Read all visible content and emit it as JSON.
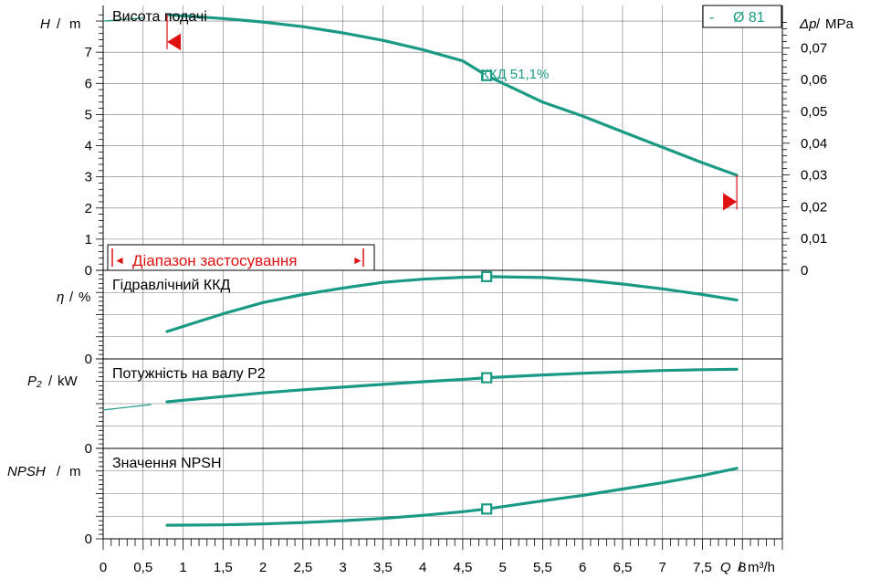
{
  "chart_data": {
    "type": "line",
    "colors": {
      "curve": "#1a9a84",
      "range": "#e01010",
      "grid": "#000000",
      "minor_grid": "#777777"
    },
    "x_axis": {
      "label": "Q",
      "unit": "m³/h",
      "range": [
        0,
        8.5
      ],
      "ticks": [
        "0",
        "0,5",
        "1",
        "1,5",
        "2",
        "2,5",
        "3",
        "3,5",
        "4",
        "4,5",
        "5",
        "5,5",
        "6",
        "6,5",
        "7",
        "7,5",
        "8"
      ]
    },
    "operating_point": {
      "q": 4.8
    },
    "panels": [
      {
        "id": "head",
        "title": "Висота подачі",
        "ylabel": "H",
        "yunit": "m",
        "ylim": [
          0,
          8.5
        ],
        "yticks": [
          "0",
          "1",
          "2",
          "3",
          "4",
          "5",
          "6",
          "7",
          "m"
        ],
        "y2label": "Δp",
        "y2unit": "MPa",
        "y2ticks": [
          "0",
          "0,01",
          "0,02",
          "0,03",
          "0,04",
          "0,05",
          "0,06",
          "0,07",
          "/ MPa"
        ],
        "series": {
          "name": "Ø 81",
          "values": [
            [
              0.8,
              8.2
            ],
            [
              1.5,
              8.08
            ],
            [
              2,
              7.97
            ],
            [
              2.5,
              7.82
            ],
            [
              3,
              7.62
            ],
            [
              3.5,
              7.38
            ],
            [
              4,
              7.08
            ],
            [
              4.5,
              6.72
            ],
            [
              4.8,
              6.25
            ],
            [
              5.5,
              5.4
            ],
            [
              6,
              4.95
            ],
            [
              6.5,
              4.45
            ],
            [
              7,
              3.95
            ],
            [
              7.5,
              3.45
            ],
            [
              7.93,
              3.05
            ]
          ]
        },
        "dashed_extension": [
          [
            0,
            8.0
          ],
          [
            0.5,
            8.1
          ]
        ],
        "marker_label": "ККД  51,1%",
        "legend": {
          "prefix": "-",
          "label": "Ø 81"
        },
        "range_box": {
          "label": "Діапазон застосування",
          "left_arrow": "◄",
          "right_arrow": "►"
        },
        "range_limits": {
          "q_min": 0.8,
          "q_max": 7.93
        }
      },
      {
        "id": "efficiency",
        "title": "Гідравлічний ККД",
        "ylabel": "η",
        "yunit": "%",
        "ylim": [
          0,
          55
        ],
        "yticks": [
          "0"
        ],
        "series": {
          "name": "",
          "values": [
            [
              0.8,
              17
            ],
            [
              1.5,
              28
            ],
            [
              2,
              35
            ],
            [
              2.5,
              40
            ],
            [
              3,
              44
            ],
            [
              3.5,
              47.5
            ],
            [
              4,
              49.5
            ],
            [
              4.5,
              50.7
            ],
            [
              4.8,
              51.1
            ],
            [
              5.5,
              50.5
            ],
            [
              6,
              49
            ],
            [
              6.5,
              46.5
            ],
            [
              7,
              43.5
            ],
            [
              7.5,
              40
            ],
            [
              7.93,
              36.5
            ]
          ]
        }
      },
      {
        "id": "power",
        "title": "Потужність на валу P2",
        "ylabel": "P₂",
        "yunit": "kW",
        "ylim": [
          0,
          1
        ],
        "yticks": [
          "0"
        ],
        "series": {
          "name": "",
          "values": [
            [
              0.8,
              0.52
            ],
            [
              1.5,
              0.58
            ],
            [
              2,
              0.62
            ],
            [
              2.5,
              0.655
            ],
            [
              3,
              0.685
            ],
            [
              3.5,
              0.715
            ],
            [
              4,
              0.745
            ],
            [
              4.5,
              0.77
            ],
            [
              4.8,
              0.79
            ],
            [
              5.5,
              0.82
            ],
            [
              6,
              0.84
            ],
            [
              6.5,
              0.855
            ],
            [
              7,
              0.87
            ],
            [
              7.5,
              0.88
            ],
            [
              7.93,
              0.885
            ]
          ]
        },
        "dashed_extension": [
          [
            0,
            0.43
          ],
          [
            0.6,
            0.49
          ]
        ]
      },
      {
        "id": "npsh",
        "title": "Значення NPSH",
        "ylabel": "NPSH",
        "yunit": "m",
        "ylim": [
          0,
          1
        ],
        "yticks": [
          "0"
        ],
        "series": {
          "name": "",
          "values": [
            [
              0.8,
              0.15
            ],
            [
              1.5,
              0.155
            ],
            [
              2,
              0.165
            ],
            [
              2.5,
              0.18
            ],
            [
              3,
              0.2
            ],
            [
              3.5,
              0.225
            ],
            [
              4,
              0.26
            ],
            [
              4.5,
              0.3
            ],
            [
              4.8,
              0.33
            ],
            [
              5.5,
              0.42
            ],
            [
              6,
              0.48
            ],
            [
              6.5,
              0.55
            ],
            [
              7,
              0.62
            ],
            [
              7.5,
              0.7
            ],
            [
              7.93,
              0.78
            ]
          ]
        }
      }
    ]
  }
}
